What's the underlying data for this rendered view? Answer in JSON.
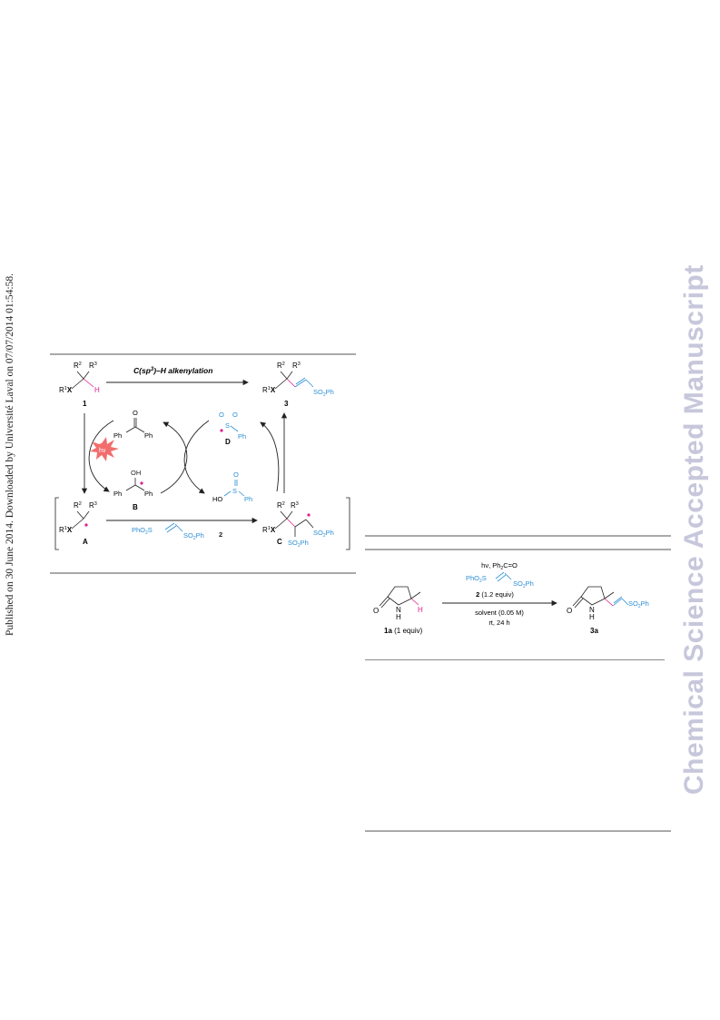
{
  "sidebar": {
    "publication_note": "Published on 30 June 2014. Downloaded by Université Laval on 07/07/2014 01:54:58."
  },
  "watermark": {
    "text": "Chemical Science Accepted Manuscript"
  },
  "scheme": {
    "title_prefix": "C(sp",
    "title_sup": "3",
    "title_suffix": ")–H alkenylation",
    "labels": {
      "r1x": "R",
      "r1x_sup": "1",
      "x": "X",
      "r2": "R",
      "r2_sup": "2",
      "r3": "R",
      "r3_sup": "3",
      "h": "H"
    },
    "compounds": {
      "c1": "1",
      "c3": "3",
      "cA": "A",
      "cB": "B",
      "cC": "C",
      "cD": "D",
      "c2": "2"
    },
    "text": {
      "o": "O",
      "oh": "OH",
      "ho": "HO",
      "s": "S",
      "ph": "Ph",
      "so2ph": "SO",
      "so2ph_sub": "2",
      "so2ph_tail": "Ph",
      "phO2s": "PhO",
      "phO2s_sub": "2",
      "phO2s_tail": "S",
      "hv": "hν"
    }
  },
  "table": {
    "conditions": {
      "line1": "hν, Ph",
      "line1_sub": "2",
      "line1_tail": "C=O",
      "reagent_prefix": "PhO",
      "reagent_sub": "2",
      "reagent_mid": "S",
      "reagent_suffix": "SO",
      "reagent_sub2": "2",
      "reagent_tail": "Ph",
      "equiv_bold": "2",
      "equiv_rest": " (1.2 equiv)",
      "solvent": "solvent (0.05 M)",
      "temp_time": "rt, 24 h"
    },
    "substrate": {
      "label_bold": "1a",
      "label_rest": " (1 equiv)",
      "o": "O",
      "nh": "N",
      "nh_h": "H",
      "h": "H"
    },
    "product": {
      "label": "3a",
      "o": "O",
      "nh": "N",
      "nh_h": "H",
      "so2ph": "SO",
      "so2ph_sub": "2",
      "so2ph_tail": "Ph"
    }
  },
  "colors": {
    "accent_blue": "#2b8fd6",
    "accent_magenta": "#e0208c",
    "burst_red": "#f26d6d",
    "watermark": "#c7c7dc"
  }
}
